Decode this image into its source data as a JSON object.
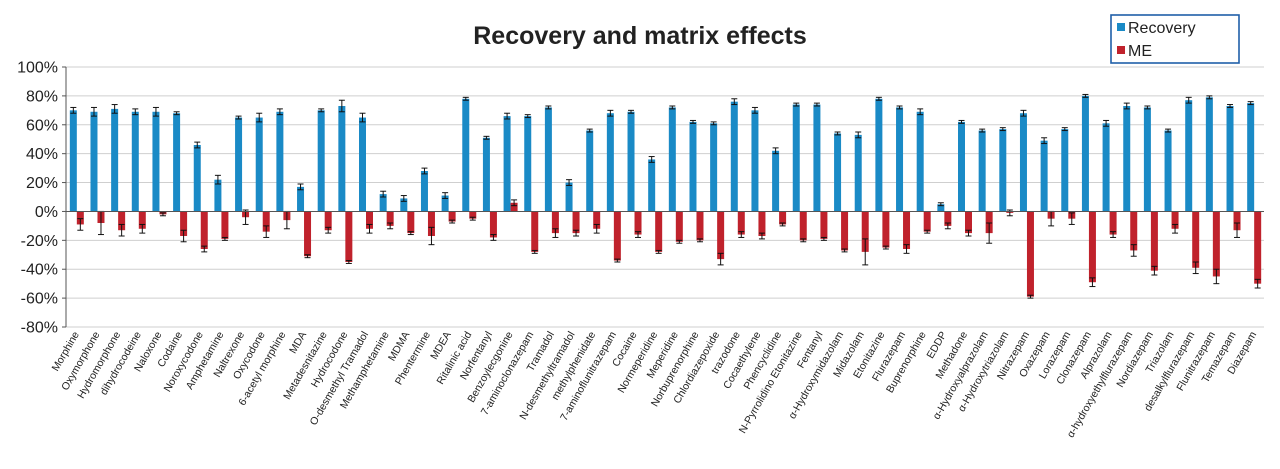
{
  "chart_data": {
    "type": "bar",
    "title": "Recovery and matrix effects",
    "xlabel": "",
    "ylabel": "",
    "ylim": [
      -80,
      100
    ],
    "yticks": [
      100,
      80,
      60,
      40,
      20,
      0,
      -20,
      -40,
      -60,
      -80
    ],
    "ytick_labels": [
      "100%",
      "80%",
      "60%",
      "40%",
      "20%",
      "0%",
      "-20%",
      "-40%",
      "-60%",
      "-80%"
    ],
    "legend_position": "top-right",
    "categories": [
      "Morphine",
      "Oxymorphone",
      "Hydromorphone",
      "dihydrocodeine",
      "Naloxone",
      "Codaine",
      "Noroxycodone",
      "Amphetamine",
      "Naltrexone",
      "Oxycodone",
      "6-acetyl morphine",
      "MDA",
      "Metadesnitazine",
      "Hydrocodone",
      "O-desmethyl Tramadol",
      "Methamphetamine",
      "MDMA",
      "Phentermine",
      "MDEA",
      "Ritalinic acid",
      "Norfentanyl",
      "Benzoylecgonine",
      "7-aminoclonazepam",
      "Tramadol",
      "N-desmethyltramadol",
      "methylphenidate",
      "7-aminoflunitrazepam",
      "Cocaine",
      "Normeperidine",
      "Meperidine",
      "Norbuprenorphine",
      "Chlordiazepoxide",
      "trazodone",
      "Cocaethylene",
      "Phencyclidine",
      "N-Pyrrolidino Etonitazine",
      "Fentanyl",
      "α-Hydroxymidazolam",
      "Midazolam",
      "Etonitazine",
      "Flurazepam",
      "Buprenorphine",
      "EDDP",
      "Methadone",
      "α-Hydroxyalprazolam",
      "α-Hydroxytriazolam",
      "Nitrazepam",
      "Oxazepam",
      "Lorazepam",
      "Clonazepam",
      "Alprazolam",
      "α-hydroxyethylflurazepam",
      "Nordiazepam",
      "Triazolam",
      "desalkylflurazepam",
      "Flunitrazepam",
      "Temazepam",
      "Diazepam"
    ],
    "series": [
      {
        "name": "Recovery",
        "color": "#1a8ac6",
        "values": [
          70,
          69,
          71,
          69,
          69,
          68,
          46,
          22,
          65,
          65,
          69,
          17,
          70,
          73,
          65,
          12,
          9,
          28,
          11,
          78,
          51,
          66,
          66,
          72,
          20,
          56,
          68,
          69,
          36,
          72,
          62,
          61,
          76,
          70,
          42,
          74,
          74,
          54,
          53,
          78,
          72,
          69,
          5,
          62,
          56,
          57,
          68,
          49,
          57,
          80,
          61,
          73,
          72,
          56,
          77,
          79,
          73,
          75
        ],
        "errors": [
          2,
          3,
          3,
          2,
          3,
          1,
          2,
          3,
          1,
          3,
          2,
          2,
          1,
          4,
          3,
          2,
          2,
          2,
          2,
          1,
          1,
          2,
          1,
          1,
          2,
          1,
          2,
          1,
          2,
          1,
          1,
          1,
          2,
          2,
          2,
          1,
          1,
          1,
          2,
          1,
          1,
          2,
          1,
          1,
          1,
          1,
          2,
          2,
          1,
          1,
          2,
          2,
          1,
          1,
          2,
          1,
          1,
          1
        ]
      },
      {
        "name": "ME",
        "color": "#c0222c",
        "values": [
          -9,
          -8,
          -13,
          -12,
          -2,
          -17,
          -26,
          -19,
          -4,
          -14,
          -6,
          -31,
          -13,
          -35,
          -12,
          -10,
          -15,
          -17,
          -7,
          -5,
          -18,
          6,
          -28,
          -15,
          -15,
          -12,
          -34,
          -16,
          -28,
          -21,
          -20,
          -33,
          -16,
          -17,
          -9,
          -20,
          -19,
          -27,
          -28,
          -25,
          -26,
          -14,
          -10,
          -15,
          -15,
          -1,
          -59,
          -5,
          -5,
          -49,
          -16,
          -27,
          -41,
          -12,
          -39,
          -45,
          -13,
          -50
        ],
        "errors": [
          4,
          8,
          4,
          3,
          1,
          4,
          2,
          1,
          5,
          4,
          6,
          1,
          2,
          1,
          3,
          2,
          1,
          6,
          1,
          1,
          2,
          2,
          1,
          3,
          2,
          3,
          1,
          2,
          1,
          1,
          1,
          4,
          2,
          2,
          1,
          1,
          1,
          1,
          9,
          1,
          3,
          1,
          2,
          2,
          7,
          2,
          1,
          5,
          4,
          3,
          2,
          4,
          3,
          3,
          4,
          5,
          5,
          3
        ]
      }
    ]
  }
}
